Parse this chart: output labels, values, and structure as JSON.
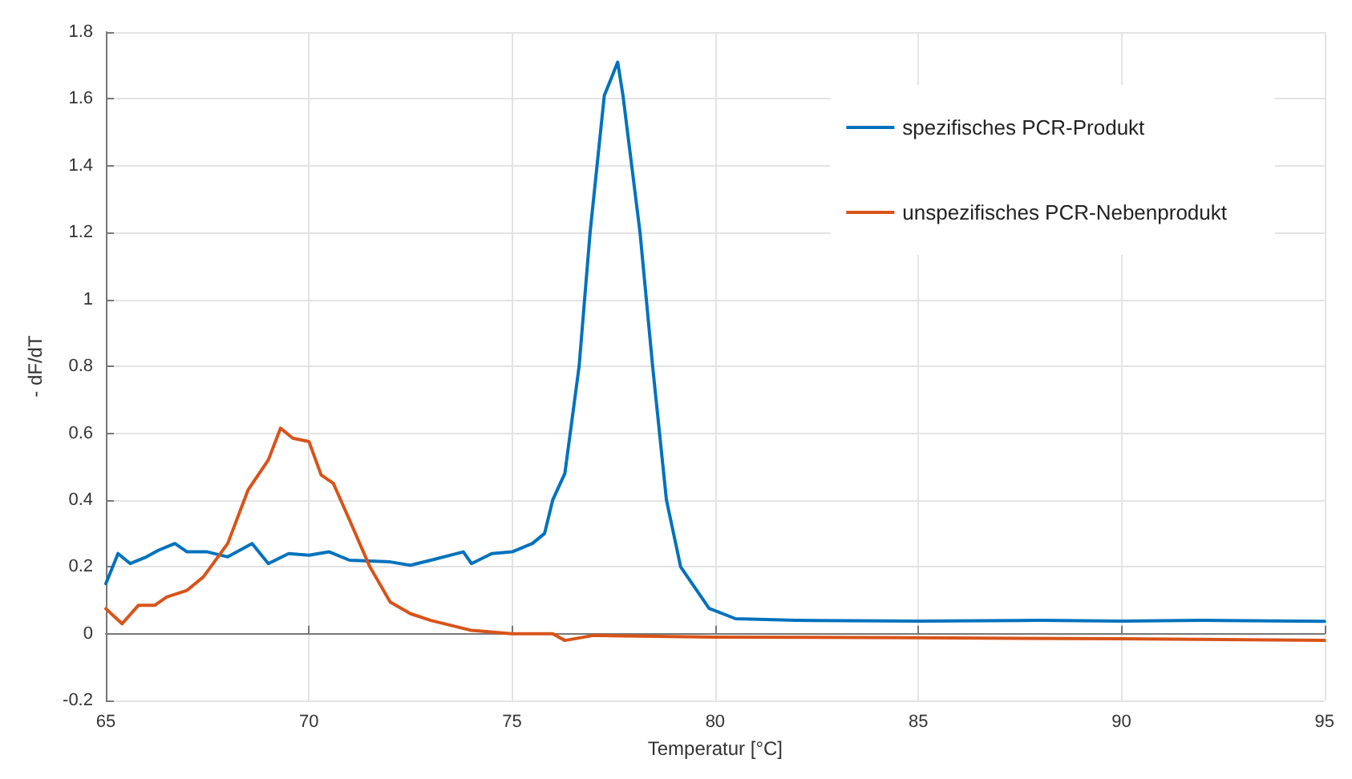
{
  "chart_data": {
    "type": "line",
    "xlabel": "Temperatur [°C]",
    "ylabel": "- dF/dT",
    "xlim": [
      65,
      95
    ],
    "ylim": [
      -0.2,
      1.8
    ],
    "xticks": [
      65,
      70,
      75,
      80,
      85,
      90,
      95
    ],
    "yticks": [
      -0.2,
      0,
      0.2,
      0.4,
      0.6,
      0.8,
      1,
      1.2,
      1.4,
      1.6,
      1.8
    ],
    "grid": true,
    "legend": "top right",
    "marker": "none",
    "line_style": "solid",
    "series": [
      {
        "name": "spezifisches PCR-Produkt",
        "color": "#0072bd",
        "x": [
          65,
          65.3,
          65.6,
          66,
          66.3,
          66.7,
          67,
          67.5,
          68,
          68.6,
          69,
          69.5,
          70,
          70.5,
          71,
          72,
          72.5,
          73,
          73.8,
          74,
          74.5,
          75,
          75.5,
          75.8,
          76,
          76.3,
          76.65,
          76.92,
          77.27,
          77.6,
          77.73,
          78.15,
          78.46,
          78.8,
          79.15,
          79.85,
          80.5,
          82,
          85,
          88,
          90,
          92,
          95
        ],
        "values": [
          0.15,
          0.24,
          0.21,
          0.23,
          0.25,
          0.27,
          0.245,
          0.245,
          0.23,
          0.27,
          0.21,
          0.24,
          0.235,
          0.245,
          0.22,
          0.215,
          0.205,
          0.22,
          0.245,
          0.21,
          0.24,
          0.245,
          0.27,
          0.3,
          0.4,
          0.48,
          0.8,
          1.2,
          1.61,
          1.71,
          1.61,
          1.2,
          0.8,
          0.4,
          0.2,
          0.076,
          0.045,
          0.04,
          0.038,
          0.04,
          0.038,
          0.04,
          0.037
        ]
      },
      {
        "name": "unspezifisches PCR-Nebenprodukt",
        "color": "#d95319",
        "x": [
          65,
          65.4,
          65.8,
          66.2,
          66.5,
          67,
          67.4,
          68,
          68.5,
          69,
          69.3,
          69.6,
          70,
          70.3,
          70.6,
          71,
          71.5,
          72,
          72.5,
          73,
          74,
          75,
          76,
          76.3,
          77,
          80,
          85,
          90,
          95
        ],
        "values": [
          0.075,
          0.03,
          0.085,
          0.085,
          0.11,
          0.13,
          0.17,
          0.27,
          0.43,
          0.52,
          0.615,
          0.585,
          0.575,
          0.475,
          0.45,
          0.34,
          0.2,
          0.095,
          0.06,
          0.04,
          0.01,
          0,
          0,
          -0.02,
          -0.005,
          -0.01,
          -0.012,
          -0.015,
          -0.02
        ]
      }
    ]
  }
}
